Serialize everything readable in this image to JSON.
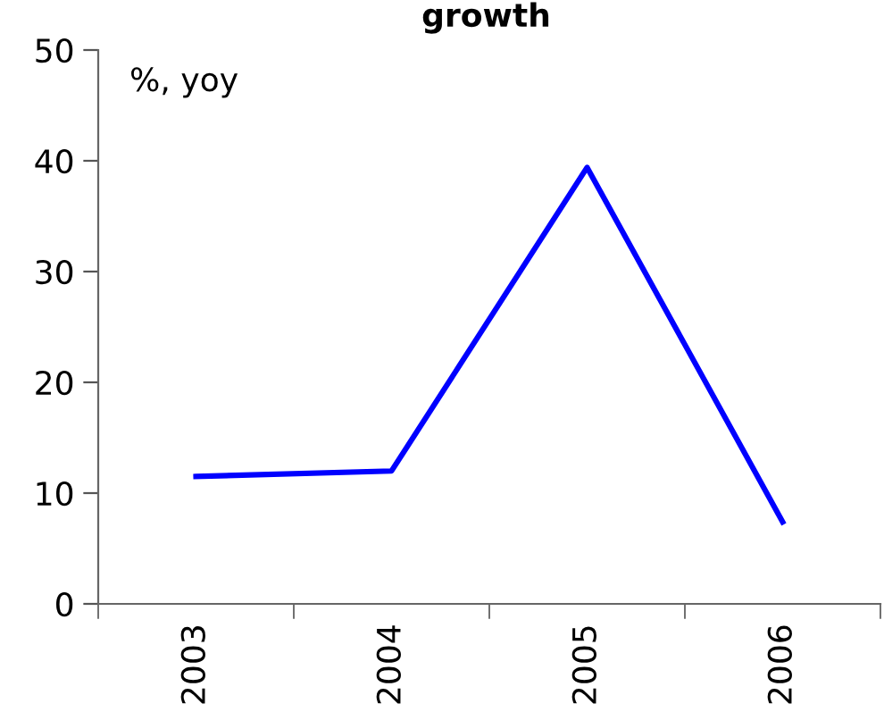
{
  "chart_data": {
    "type": "line",
    "title": "growth",
    "annotations": [
      "%, yoy"
    ],
    "categories": [
      "2003",
      "2004",
      "2005",
      "2006"
    ],
    "series": [
      {
        "color": "#0000ff",
        "values": [
          11.5,
          12.0,
          39.4,
          7.4
        ]
      }
    ],
    "ylim": [
      0,
      50
    ],
    "yticks": [
      0,
      10,
      20,
      30,
      40,
      50
    ],
    "grid": false,
    "marker": "none",
    "line_style": "solid"
  }
}
